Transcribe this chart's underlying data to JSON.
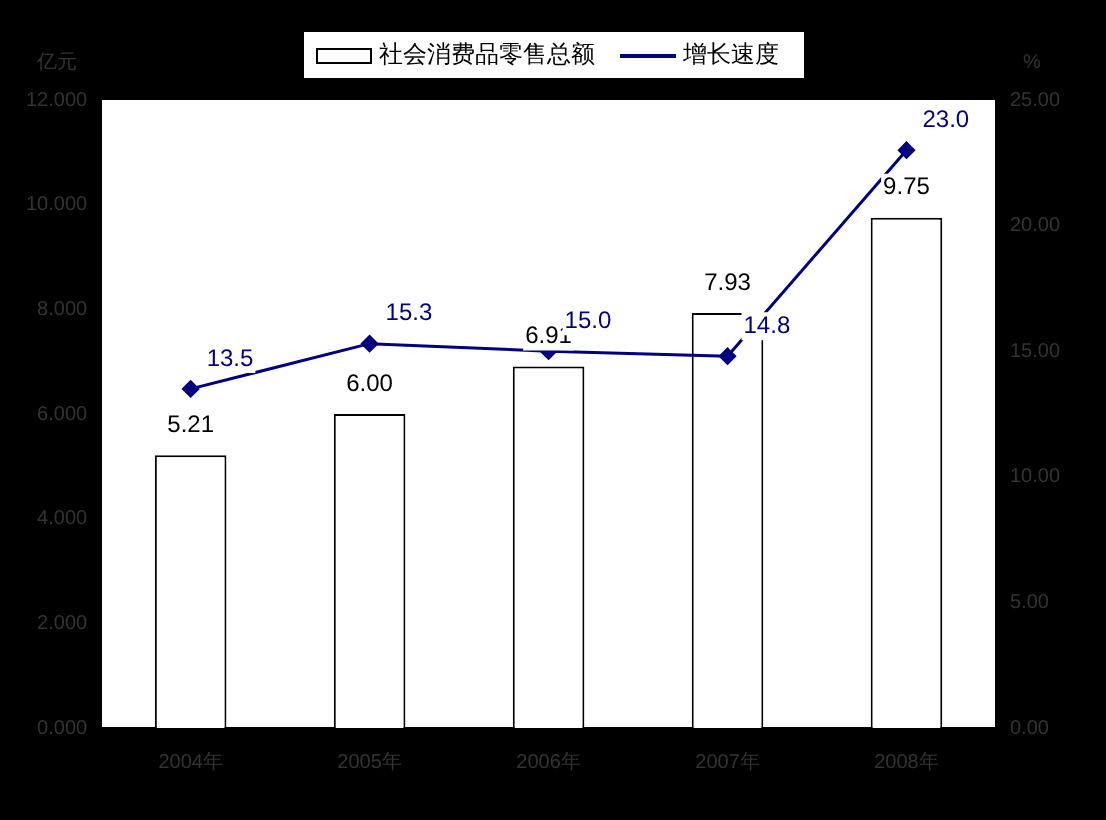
{
  "chart_data": {
    "type": "bar",
    "ylabel": "亿元",
    "y2label": "%",
    "categories": [
      "2004年",
      "2005年",
      "2006年",
      "2007年",
      "2008年"
    ],
    "series": [
      {
        "name": "社会消费品零售总额",
        "color": "#ffffff",
        "values": [
          5.21,
          6.0,
          6.91,
          7.93,
          9.75
        ],
        "value_labels": [
          "5.21",
          "6.00",
          "6.91",
          "7.93",
          "9.75"
        ]
      },
      {
        "name": "增长速度",
        "type": "line",
        "axis": "y2",
        "color": "#000080",
        "marker": "diamond",
        "values": [
          13.5,
          15.3,
          15.0,
          14.8,
          23.0
        ],
        "value_labels": [
          "13.5",
          "15.3",
          "15.0",
          "14.8",
          "23.0"
        ]
      }
    ],
    "ylim": [
      0,
      12
    ],
    "yticks": [
      {
        "value": 0,
        "label": "0.000"
      },
      {
        "value": 2,
        "label": "2.000"
      },
      {
        "value": 4,
        "label": "4.000"
      },
      {
        "value": 6,
        "label": "6.000"
      },
      {
        "value": 8,
        "label": "8.000"
      },
      {
        "value": 10,
        "label": "10.000"
      },
      {
        "value": 12,
        "label": "12.000"
      }
    ],
    "y2lim": [
      0,
      25
    ],
    "y2ticks": [
      {
        "value": 0,
        "label": "0.00"
      },
      {
        "value": 5,
        "label": "5.00"
      },
      {
        "value": 10,
        "label": "10.00"
      },
      {
        "value": 15,
        "label": "15.00"
      },
      {
        "value": 20,
        "label": "20.00"
      },
      {
        "value": 25,
        "label": "25.00"
      }
    ],
    "legend": "top",
    "grid": false
  }
}
